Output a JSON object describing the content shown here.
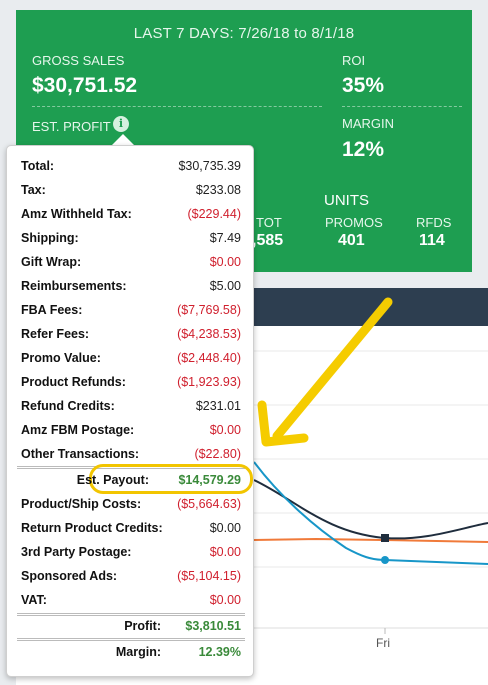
{
  "stats": {
    "period_title": "LAST 7 DAYS: 7/26/18 to 8/1/18",
    "gross_sales_label": "GROSS SALES",
    "gross_sales_value": "$30,751.52",
    "roi_label": "ROI",
    "roi_value": "35%",
    "margin_label": "MARGIN",
    "margin_value": "12%",
    "est_profit_label": "EST. PROFIT",
    "info_glyph": "i",
    "units_title": "UNITS",
    "units": [
      {
        "label": "TOT",
        "value": ",585"
      },
      {
        "label": "PROMOS",
        "value": "401"
      },
      {
        "label": "RFDS",
        "value": "114"
      }
    ]
  },
  "breakdown": {
    "rows": [
      {
        "label": "Total:",
        "value": "$30,735.39",
        "kind": "normal"
      },
      {
        "label": "Tax:",
        "value": "$233.08",
        "kind": "normal"
      },
      {
        "label": "Amz Withheld Tax:",
        "value": "($229.44)",
        "kind": "neg"
      },
      {
        "label": "Shipping:",
        "value": "$7.49",
        "kind": "normal"
      },
      {
        "label": "Gift Wrap:",
        "value": "$0.00",
        "kind": "neg"
      },
      {
        "label": "Reimbursements:",
        "value": "$5.00",
        "kind": "normal"
      },
      {
        "label": "FBA Fees:",
        "value": "($7,769.58)",
        "kind": "neg"
      },
      {
        "label": "Refer Fees:",
        "value": "($4,238.53)",
        "kind": "neg"
      },
      {
        "label": "Promo Value:",
        "value": "($2,448.40)",
        "kind": "neg"
      },
      {
        "label": "Product Refunds:",
        "value": "($1,923.93)",
        "kind": "neg"
      },
      {
        "label": "Refund Credits:",
        "value": "$231.01",
        "kind": "normal"
      },
      {
        "label": "Amz FBM Postage:",
        "value": "$0.00",
        "kind": "neg"
      },
      {
        "label": "Other Transactions:",
        "value": "($22.80)",
        "kind": "neg"
      }
    ],
    "payout": {
      "label": "Est. Payout:",
      "value": "$14,579.29"
    },
    "rows2": [
      {
        "label": "Product/Ship Costs:",
        "value": "($5,664.63)",
        "kind": "neg"
      },
      {
        "label": "Return Product Credits:",
        "value": "$0.00",
        "kind": "normal"
      },
      {
        "label": "3rd Party Postage:",
        "value": "$0.00",
        "kind": "neg"
      },
      {
        "label": "Sponsored Ads:",
        "value": "($5,104.15)",
        "kind": "neg"
      },
      {
        "label": "VAT:",
        "value": "$0.00",
        "kind": "neg"
      }
    ],
    "profit": {
      "label": "Profit:",
      "value": "$3,810.51"
    },
    "margin": {
      "label": "Margin:",
      "value": "12.39%"
    }
  },
  "chart": {
    "x_label_visible": "Fri",
    "colors": {
      "dark": "#1f2d3d",
      "blue": "#1796c8",
      "orange": "#f07a3a",
      "header": "#2d3e50"
    }
  },
  "annotation": {
    "arrow_color": "#f5cc00",
    "highlight_color": "#f2c500"
  }
}
